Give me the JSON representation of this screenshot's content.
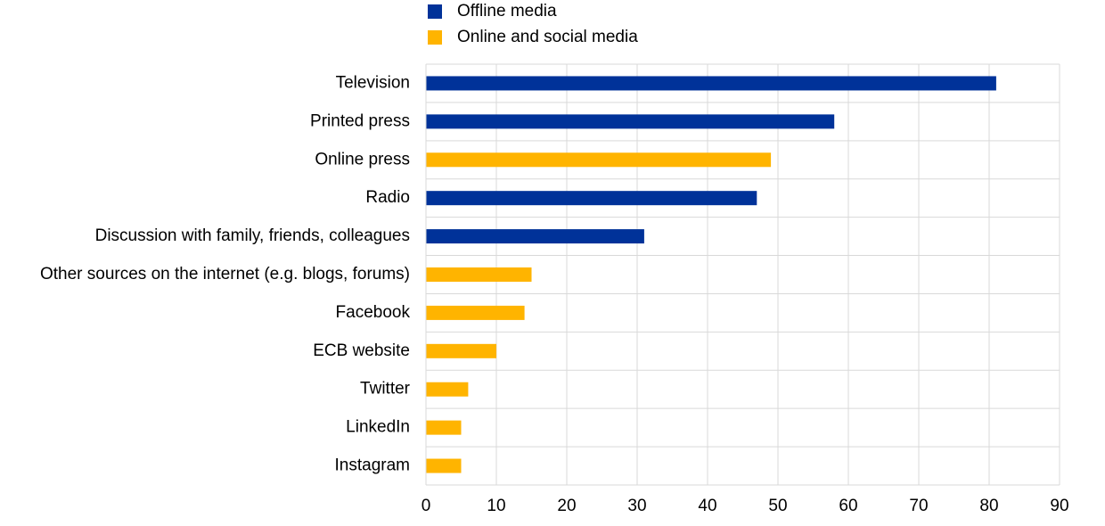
{
  "chart_data": {
    "type": "hbar",
    "categories": [
      "Television",
      "Printed press",
      "Online press",
      "Radio",
      "Discussion with family, friends, colleagues",
      "Other sources on the internet (e.g. blogs, forums)",
      "Facebook",
      "ECB website",
      "Twitter",
      "LinkedIn",
      "Instagram"
    ],
    "series": [
      {
        "name": "Offline media",
        "color": "#003299",
        "values": [
          81,
          58,
          null,
          47,
          31,
          null,
          null,
          null,
          null,
          null,
          null
        ]
      },
      {
        "name": "Online and social media",
        "color": "#ffb400",
        "values": [
          null,
          null,
          49,
          null,
          null,
          15,
          14,
          10,
          6,
          5,
          5
        ]
      }
    ],
    "xlim": [
      0,
      90
    ],
    "xticks": [
      0,
      10,
      20,
      30,
      40,
      50,
      60,
      70,
      80,
      90
    ],
    "grid": true
  }
}
